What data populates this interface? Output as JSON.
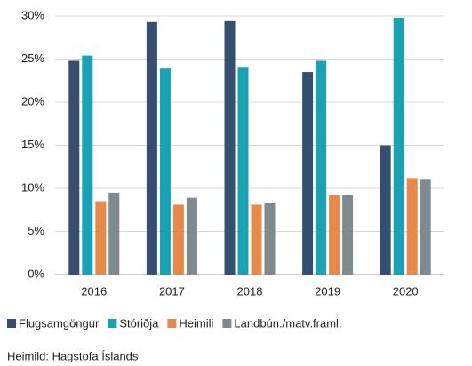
{
  "chart_data": {
    "type": "bar",
    "categories": [
      "2016",
      "2017",
      "2018",
      "2019",
      "2020"
    ],
    "series": [
      {
        "name": "Flugsamgöngur",
        "color": "#34506e",
        "values": [
          24.8,
          29.3,
          29.4,
          23.5,
          15.0
        ]
      },
      {
        "name": "Stóriðja",
        "color": "#18a2b3",
        "values": [
          25.4,
          23.9,
          24.1,
          24.8,
          29.8
        ]
      },
      {
        "name": "Heimili",
        "color": "#e8894a",
        "values": [
          8.5,
          8.1,
          8.1,
          9.2,
          11.2
        ]
      },
      {
        "name": "Landbún./matv.framl.",
        "color": "#7f8a8f",
        "values": [
          9.5,
          8.9,
          8.3,
          9.2,
          11.0
        ]
      }
    ],
    "ylim": [
      0,
      30
    ],
    "yticks": [
      {
        "value": 0,
        "label": "0%"
      },
      {
        "value": 5,
        "label": "5%"
      },
      {
        "value": 10,
        "label": "10%"
      },
      {
        "value": 15,
        "label": "15%"
      },
      {
        "value": 20,
        "label": "20%"
      },
      {
        "value": 25,
        "label": "25%"
      },
      {
        "value": 30,
        "label": "30%"
      }
    ],
    "grid": true,
    "source": "Heimild: Hagstofa Íslands"
  }
}
